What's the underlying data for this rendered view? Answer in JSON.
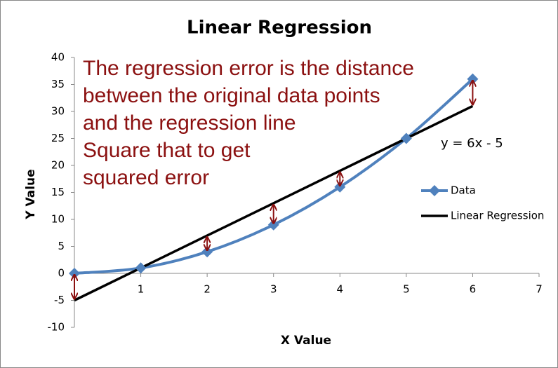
{
  "chart_data": {
    "type": "line",
    "title": "Linear Regression",
    "x_label": "X Value",
    "y_label": "Y Value",
    "x": [
      0,
      1,
      2,
      3,
      4,
      5,
      6
    ],
    "series": [
      {
        "name": "Data",
        "color": "#4f81bd",
        "values": [
          0,
          1,
          4,
          9,
          16,
          25,
          36
        ]
      },
      {
        "name": "Linear Regression",
        "color": "#000000",
        "values": [
          -5,
          1,
          7,
          13,
          19,
          25,
          31
        ]
      }
    ],
    "xlim": [
      0,
      7
    ],
    "xticks": [
      1,
      2,
      3,
      4,
      5,
      6,
      7
    ],
    "ylim": [
      -10,
      40
    ],
    "yticks": [
      -10,
      -5,
      0,
      5,
      10,
      15,
      20,
      25,
      30,
      35,
      40
    ],
    "legend": "right",
    "error_color": "#8b1010",
    "annotation": [
      "The regression error is the distance",
      "between the original data points",
      "and the regression line",
      "Square that to get",
      "squared error"
    ],
    "equation": "y = 6x - 5"
  }
}
